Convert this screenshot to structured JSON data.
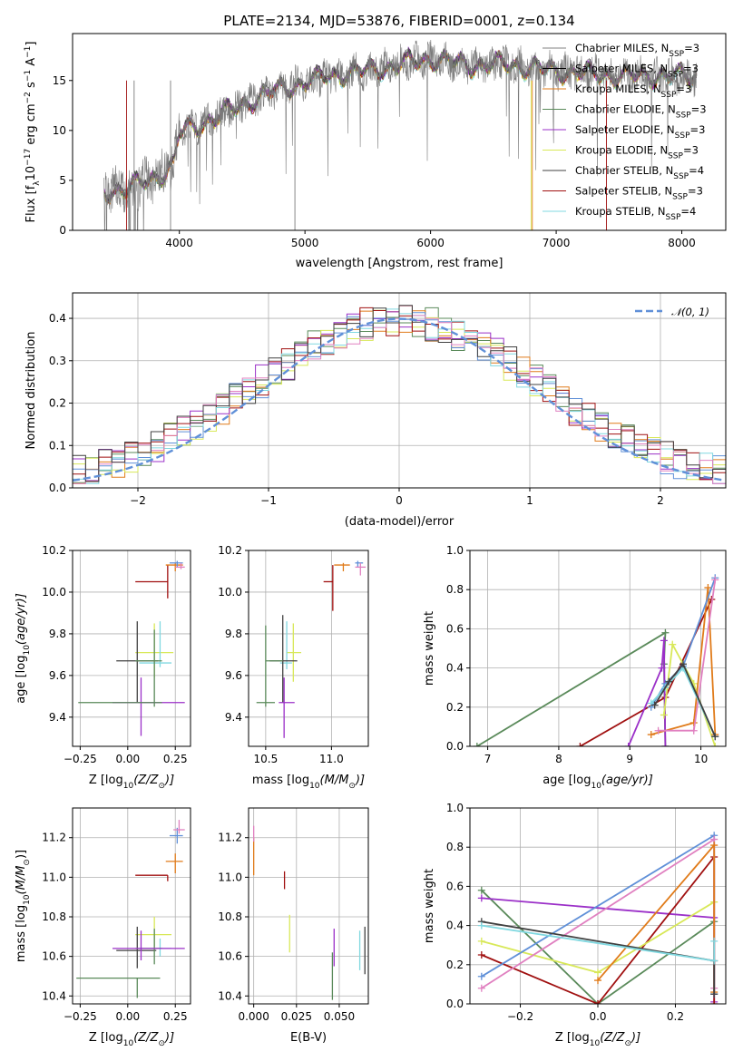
{
  "colors": {
    "chabrier_miles": "#808080",
    "salpeter_miles": "#000000",
    "kroupa_miles": "#e07b1a",
    "chabrier_elodie": "#5a8a5a",
    "salpeter_elodie": "#9b30c8",
    "kroupa_elodie": "#d8e858",
    "chabrier_stelib": "#404040",
    "salpeter_stelib": "#a01010",
    "kroupa_stelib": "#80d8e0",
    "blue": "#6090d8",
    "pink": "#e080c0",
    "normal": "#6090d8"
  },
  "chart_data": [
    {
      "id": "spectrum",
      "type": "line",
      "title": "PLATE=2134, MJD=53876, FIBERID=0001, z=0.134",
      "xlabel": "wavelength [Angstrom, rest frame]",
      "ylabel_parts": [
        "Flux [f",
        "λ",
        "10",
        "−17",
        " erg cm",
        "−2",
        " s",
        "−1",
        " A",
        "−1",
        "]"
      ],
      "xlim": [
        3150,
        8350
      ],
      "ylim": [
        0,
        19.7
      ],
      "xticks": [
        4000,
        5000,
        6000,
        7000,
        8000
      ],
      "yticks": [
        0,
        5,
        10,
        15
      ],
      "grid": false,
      "legend": [
        {
          "label": "Chabrier MILES, N",
          "sub": "SSP",
          "tail": "=3",
          "color_key": "chabrier_miles"
        },
        {
          "label": "Salpeter MILES, N",
          "sub": "SSP",
          "tail": "=3",
          "color_key": "salpeter_miles"
        },
        {
          "label": "Kroupa MILES, N",
          "sub": "SSP",
          "tail": "=3",
          "color_key": "kroupa_miles"
        },
        {
          "label": "Chabrier ELODIE, N",
          "sub": "SSP",
          "tail": "=3",
          "color_key": "chabrier_elodie"
        },
        {
          "label": "Salpeter ELODIE, N",
          "sub": "SSP",
          "tail": "=3",
          "color_key": "salpeter_elodie"
        },
        {
          "label": "Kroupa ELODIE, N",
          "sub": "SSP",
          "tail": "=3",
          "color_key": "kroupa_elodie"
        },
        {
          "label": "Chabrier STELIB, N",
          "sub": "SSP",
          "tail": "=4",
          "color_key": "chabrier_stelib"
        },
        {
          "label": "Salpeter STELIB, N",
          "sub": "SSP",
          "tail": "=3",
          "color_key": "salpeter_stelib"
        },
        {
          "label": "Kroupa STELIB, N",
          "sub": "SSP",
          "tail": "=4",
          "color_key": "kroupa_stelib"
        }
      ],
      "legend_placement": "right",
      "continuum": {
        "x": [
          3400,
          3600,
          3800,
          3950,
          4000,
          4200,
          4400,
          4600,
          4800,
          5000,
          5200,
          5400,
          5600,
          5800,
          6000,
          6200,
          6400,
          6600,
          6800,
          7000,
          7200,
          7400,
          7600,
          7800,
          8000,
          8100
        ],
        "y": [
          3.8,
          4.3,
          5.2,
          6.5,
          9.8,
          10.8,
          12.0,
          13.2,
          14.2,
          14.8,
          15.5,
          15.9,
          16.2,
          16.8,
          17.2,
          16.8,
          16.5,
          16.7,
          16.3,
          16.0,
          15.8,
          15.6,
          15.5,
          15.5,
          15.5,
          15.3
        ]
      }
    },
    {
      "id": "residual-hist",
      "type": "line",
      "xlabel": "(data-model)/error",
      "ylabel": "Normed distribution",
      "xlim": [
        -2.5,
        2.5
      ],
      "ylim": [
        0,
        0.46
      ],
      "xticks": [
        -2,
        -1,
        0,
        1,
        2
      ],
      "yticks": [
        0.0,
        0.1,
        0.2,
        0.3,
        0.4
      ],
      "grid": true,
      "legend": [
        {
          "label": "𝒩(0, 1)",
          "color_key": "normal"
        }
      ],
      "legend_placement": "top-right"
    },
    {
      "id": "age-vs-Z",
      "type": "scatter",
      "xlabel_parts": [
        "Z [log",
        "10",
        "(Z/Z",
        "⊙",
        ")]"
      ],
      "ylabel_parts": [
        "age  [log",
        "10",
        "(age/yr)]"
      ],
      "xlim": [
        -0.29,
        0.33
      ],
      "ylim": [
        9.26,
        10.2
      ],
      "xticks": [
        -0.25,
        0.0,
        0.25
      ],
      "yticks": [
        9.4,
        9.6,
        9.8,
        10.0,
        10.2
      ],
      "grid": true,
      "points": [
        {
          "x": 0.21,
          "y": 10.05,
          "xerr": [
            0.17,
            0.0
          ],
          "yerr": [
            0.08,
            0.08
          ],
          "color_key": "salpeter_stelib"
        },
        {
          "x": 0.25,
          "y": 10.13,
          "xerr": [
            0.05,
            0.04
          ],
          "yerr": [
            0.03,
            0.01
          ],
          "color_key": "kroupa_miles"
        },
        {
          "x": 0.26,
          "y": 10.14,
          "xerr": [
            0.04,
            0.03
          ],
          "yerr": [
            0.02,
            0.01
          ],
          "color_key": "blue"
        },
        {
          "x": 0.28,
          "y": 10.12,
          "xerr": [
            0.03,
            0.02
          ],
          "yerr": [
            0.01,
            0.02
          ],
          "color_key": "pink"
        },
        {
          "x": 0.14,
          "y": 9.71,
          "xerr": [
            0.1,
            0.1
          ],
          "yerr": [
            0.12,
            0.14
          ],
          "color_key": "kroupa_elodie"
        },
        {
          "x": 0.17,
          "y": 9.66,
          "xerr": [
            0.11,
            0.06
          ],
          "yerr": [
            0.02,
            0.2
          ],
          "color_key": "kroupa_stelib"
        },
        {
          "x": 0.05,
          "y": 9.67,
          "xerr": [
            0.11,
            0.11
          ],
          "yerr": [
            0.2,
            0.19
          ],
          "color_key": "chabrier_stelib"
        },
        {
          "x": 0.14,
          "y": 9.67,
          "xerr": [
            0.1,
            0.04
          ],
          "yerr": [
            0.22,
            0.15
          ],
          "color_key": "chabrier_elodie"
        },
        {
          "x": 0.07,
          "y": 9.47,
          "xerr": [
            0.15,
            0.23
          ],
          "yerr": [
            0.16,
            0.12
          ],
          "color_key": "salpeter_elodie"
        },
        {
          "x": -0.11,
          "y": 9.47,
          "xerr": [
            0.15,
            0.29
          ],
          "yerr": [
            0.0,
            0.0
          ],
          "color_key": "chabrier_elodie"
        }
      ]
    },
    {
      "id": "age-vs-mass",
      "type": "scatter",
      "xlabel_parts": [
        "mass [log",
        "10",
        "(M/M",
        "⊙",
        ")]"
      ],
      "xlim": [
        10.37,
        11.28
      ],
      "ylim": [
        9.26,
        10.2
      ],
      "xticks": [
        10.5,
        11.0
      ],
      "yticks": [
        9.4,
        9.6,
        9.8,
        10.0,
        10.2
      ],
      "grid": true,
      "points": [
        {
          "x": 11.01,
          "y": 10.05,
          "xerr": [
            0.07,
            0.0
          ],
          "yerr": [
            0.14,
            0.08
          ],
          "color_key": "salpeter_stelib"
        },
        {
          "x": 11.09,
          "y": 10.13,
          "xerr": [
            0.07,
            0.05
          ],
          "yerr": [
            0.03,
            0.01
          ],
          "color_key": "kroupa_miles"
        },
        {
          "x": 11.2,
          "y": 10.14,
          "xerr": [
            0.02,
            0.04
          ],
          "yerr": [
            0.02,
            0.01
          ],
          "color_key": "blue"
        },
        {
          "x": 11.22,
          "y": 10.12,
          "xerr": [
            0.04,
            0.04
          ],
          "yerr": [
            0.04,
            0.02
          ],
          "color_key": "pink"
        },
        {
          "x": 10.71,
          "y": 9.71,
          "xerr": [
            0.05,
            0.06
          ],
          "yerr": [
            0.14,
            0.14
          ],
          "color_key": "kroupa_elodie"
        },
        {
          "x": 10.66,
          "y": 9.66,
          "xerr": [
            0.05,
            0.04
          ],
          "yerr": [
            0.03,
            0.2
          ],
          "color_key": "kroupa_stelib"
        },
        {
          "x": 10.63,
          "y": 9.67,
          "xerr": [
            0.1,
            0.11
          ],
          "yerr": [
            0.2,
            0.22
          ],
          "color_key": "chabrier_stelib"
        },
        {
          "x": 10.5,
          "y": 9.67,
          "xerr": [
            0.0,
            0.13
          ],
          "yerr": [
            0.22,
            0.17
          ],
          "color_key": "chabrier_elodie"
        },
        {
          "x": 10.64,
          "y": 9.47,
          "xerr": [
            0.04,
            0.08
          ],
          "yerr": [
            0.17,
            0.12
          ],
          "color_key": "salpeter_elodie"
        },
        {
          "x": 10.49,
          "y": 9.47,
          "xerr": [
            0.06,
            0.08
          ],
          "yerr": [
            0.0,
            0.0
          ],
          "color_key": "chabrier_elodie"
        }
      ]
    },
    {
      "id": "massweight-vs-age",
      "type": "line",
      "xlabel_parts": [
        "age  [log",
        "10",
        "(age/yr)]"
      ],
      "ylabel": "mass weight",
      "xlim": [
        6.75,
        10.35
      ],
      "ylim": [
        0,
        1
      ],
      "xticks": [
        7,
        8,
        9,
        10
      ],
      "yticks": [
        0.0,
        0.2,
        0.4,
        0.6,
        0.8,
        1.0
      ],
      "grid": true,
      "series": [
        {
          "color_key": "chabrier_elodie",
          "x": [
            6.85,
            9.5,
            9.48,
            9.5
          ],
          "y": [
            0.0,
            0.58,
            0.42,
            0.0
          ]
        },
        {
          "color_key": "salpeter_stelib",
          "x": [
            8.3,
            9.5,
            10.15
          ],
          "y": [
            0.0,
            0.25,
            0.75
          ]
        },
        {
          "color_key": "salpeter_elodie",
          "x": [
            8.98,
            9.45,
            9.48,
            9.5
          ],
          "y": [
            0.0,
            0.4,
            0.54,
            0.0
          ]
        },
        {
          "color_key": "kroupa_elodie",
          "x": [
            9.48,
            9.6,
            9.9,
            10.2
          ],
          "y": [
            0.16,
            0.52,
            0.32,
            0.0
          ]
        },
        {
          "color_key": "kroupa_miles",
          "x": [
            9.3,
            9.9,
            10.1,
            10.2
          ],
          "y": [
            0.06,
            0.12,
            0.81,
            0.06
          ]
        },
        {
          "color_key": "blue",
          "x": [
            9.3,
            9.5,
            9.75,
            10.2
          ],
          "y": [
            0.2,
            0.32,
            0.41,
            0.86
          ]
        },
        {
          "color_key": "pink",
          "x": [
            9.4,
            9.9,
            10.2
          ],
          "y": [
            0.08,
            0.08,
            0.85
          ]
        },
        {
          "color_key": "kroupa_stelib",
          "x": [
            9.3,
            9.5,
            9.75,
            10.2
          ],
          "y": [
            0.22,
            0.3,
            0.4,
            0.05
          ]
        },
        {
          "color_key": "chabrier_stelib",
          "x": [
            9.35,
            9.55,
            9.75,
            10.2
          ],
          "y": [
            0.21,
            0.33,
            0.42,
            0.05
          ]
        }
      ]
    },
    {
      "id": "mass-vs-Z",
      "type": "scatter",
      "xlabel_parts": [
        "Z [log",
        "10",
        "(Z/Z",
        "⊙",
        ")]"
      ],
      "ylabel_parts": [
        "mass [log",
        "10",
        "(M/M",
        "⊙",
        ")]"
      ],
      "xlim": [
        -0.29,
        0.33
      ],
      "ylim": [
        10.36,
        11.35
      ],
      "xticks": [
        -0.25,
        0.0,
        0.25
      ],
      "yticks": [
        10.4,
        10.6,
        10.8,
        11.0,
        11.2
      ],
      "grid": true,
      "points": [
        {
          "x": 0.21,
          "y": 11.01,
          "xerr": [
            0.17,
            0.0
          ],
          "yerr": [
            0.03,
            0.0
          ],
          "color_key": "salpeter_stelib"
        },
        {
          "x": 0.25,
          "y": 11.08,
          "xerr": [
            0.05,
            0.04
          ],
          "yerr": [
            0.06,
            0.04
          ],
          "color_key": "kroupa_miles"
        },
        {
          "x": 0.26,
          "y": 11.21,
          "xerr": [
            0.04,
            0.03
          ],
          "yerr": [
            0.04,
            0.04
          ],
          "color_key": "blue"
        },
        {
          "x": 0.27,
          "y": 11.24,
          "xerr": [
            0.03,
            0.03
          ],
          "yerr": [
            0.02,
            0.05
          ],
          "color_key": "pink"
        },
        {
          "x": 0.14,
          "y": 10.71,
          "xerr": [
            0.1,
            0.09
          ],
          "yerr": [
            0.06,
            0.09
          ],
          "color_key": "kroupa_elodie"
        },
        {
          "x": 0.17,
          "y": 10.64,
          "xerr": [
            0.11,
            0.06
          ],
          "yerr": [
            0.04,
            0.05
          ],
          "color_key": "kroupa_stelib"
        },
        {
          "x": 0.05,
          "y": 10.63,
          "xerr": [
            0.11,
            0.1
          ],
          "yerr": [
            0.09,
            0.12
          ],
          "color_key": "chabrier_stelib"
        },
        {
          "x": 0.14,
          "y": 10.64,
          "xerr": [
            0.1,
            0.04
          ],
          "yerr": [
            0.08,
            0.1
          ],
          "color_key": "chabrier_elodie"
        },
        {
          "x": 0.07,
          "y": 10.64,
          "xerr": [
            0.15,
            0.23
          ],
          "yerr": [
            0.06,
            0.09
          ],
          "color_key": "salpeter_elodie"
        },
        {
          "x": 0.05,
          "y": 10.49,
          "xerr": [
            0.32,
            0.12
          ],
          "yerr": [
            0.1,
            0.0
          ],
          "color_key": "chabrier_elodie"
        }
      ]
    },
    {
      "id": "mass-vs-EBV",
      "type": "scatter",
      "xlabel": "E(B-V)",
      "xlim": [
        -0.003,
        0.067
      ],
      "ylim": [
        10.36,
        11.35
      ],
      "xticks": [
        0.0,
        0.025,
        0.05
      ],
      "xtick_labels": [
        "0.000",
        "0.025",
        "0.050"
      ],
      "yticks": [
        10.4,
        10.6,
        10.8,
        11.0,
        11.2
      ],
      "grid": true,
      "points": [
        {
          "x": 0.0,
          "y": 11.1,
          "yerr": [
            0.09,
            0.1
          ],
          "color_key": "kroupa_miles"
        },
        {
          "x": 0.0,
          "y": 11.22,
          "yerr": [
            0.04,
            0.04
          ],
          "color_key": "pink"
        },
        {
          "x": 0.018,
          "y": 10.98,
          "yerr": [
            0.04,
            0.05
          ],
          "color_key": "salpeter_stelib"
        },
        {
          "x": 0.021,
          "y": 10.72,
          "yerr": [
            0.1,
            0.09
          ],
          "color_key": "kroupa_elodie"
        },
        {
          "x": 0.047,
          "y": 10.63,
          "yerr": [
            0.08,
            0.11
          ],
          "color_key": "salpeter_elodie"
        },
        {
          "x": 0.046,
          "y": 10.5,
          "yerr": [
            0.12,
            0.12
          ],
          "color_key": "chabrier_elodie"
        },
        {
          "x": 0.062,
          "y": 10.62,
          "yerr": [
            0.09,
            0.11
          ],
          "color_key": "kroupa_stelib"
        },
        {
          "x": 0.065,
          "y": 10.62,
          "yerr": [
            0.11,
            0.13
          ],
          "color_key": "chabrier_stelib"
        }
      ]
    },
    {
      "id": "massweight-vs-Z",
      "type": "line",
      "xlabel_parts": [
        "Z [log",
        "10",
        "(Z/Z",
        "⊙",
        ")]"
      ],
      "ylabel": "mass weight",
      "xlim": [
        -0.33,
        0.33
      ],
      "ylim": [
        0,
        1
      ],
      "xticks": [
        -0.2,
        0.0,
        0.2
      ],
      "yticks": [
        0.0,
        0.2,
        0.4,
        0.6,
        0.8,
        1.0
      ],
      "grid": true,
      "series": [
        {
          "color_key": "chabrier_elodie",
          "x": [
            -0.3,
            0.0,
            0.3
          ],
          "y": [
            0.58,
            0.0,
            0.42
          ]
        },
        {
          "color_key": "salpeter_elodie",
          "x": [
            -0.3,
            0.3,
            0.3
          ],
          "y": [
            0.54,
            0.44,
            0.01
          ]
        },
        {
          "color_key": "salpeter_stelib",
          "x": [
            -0.3,
            0.0,
            0.3,
            0.3
          ],
          "y": [
            0.25,
            0.0,
            0.75,
            0.0
          ]
        },
        {
          "color_key": "kroupa_elodie",
          "x": [
            -0.3,
            0.0,
            0.3
          ],
          "y": [
            0.32,
            0.16,
            0.52
          ]
        },
        {
          "color_key": "blue",
          "x": [
            -0.3,
            0.3,
            0.3
          ],
          "y": [
            0.14,
            0.86,
            0.05
          ]
        },
        {
          "color_key": "pink",
          "x": [
            -0.3,
            0.3,
            0.3
          ],
          "y": [
            0.08,
            0.84,
            0.08
          ]
        },
        {
          "color_key": "kroupa_miles",
          "x": [
            0.0,
            0.3,
            0.3
          ],
          "y": [
            0.12,
            0.81,
            0.06
          ]
        },
        {
          "color_key": "chabrier_stelib",
          "x": [
            -0.3,
            0.3,
            0.3
          ],
          "y": [
            0.42,
            0.22,
            0.05
          ]
        },
        {
          "color_key": "kroupa_stelib",
          "x": [
            -0.3,
            0.3,
            0.3
          ],
          "y": [
            0.4,
            0.22,
            0.32
          ]
        }
      ]
    }
  ]
}
